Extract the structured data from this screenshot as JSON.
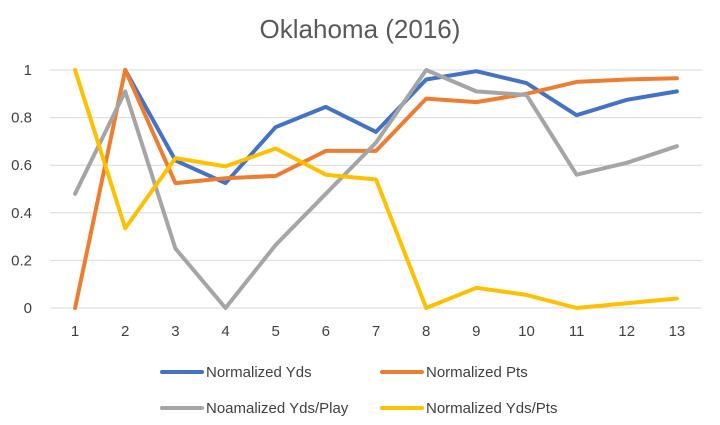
{
  "chart_data": {
    "type": "line",
    "title": "Oklahoma (2016)",
    "xlabel": "",
    "ylabel": "",
    "categories": [
      "1",
      "2",
      "3",
      "4",
      "5",
      "6",
      "7",
      "8",
      "9",
      "10",
      "11",
      "12",
      "13"
    ],
    "ylim": [
      0,
      1
    ],
    "yticks": [
      "0",
      "0.2",
      "0.4",
      "0.6",
      "0.8",
      "1"
    ],
    "grid": true,
    "legend_position": "bottom",
    "series": [
      {
        "name": "Normalized Yds",
        "color": "#4472C4",
        "values": [
          null,
          1.0,
          0.62,
          0.525,
          0.76,
          0.845,
          0.74,
          0.96,
          0.995,
          0.945,
          0.81,
          0.875,
          0.91
        ]
      },
      {
        "name": "Normalized Pts",
        "color": "#ED7D31",
        "values": [
          0.0,
          1.0,
          0.525,
          0.545,
          0.555,
          0.66,
          0.66,
          0.88,
          0.865,
          0.9,
          0.95,
          0.96,
          0.965
        ]
      },
      {
        "name": "Noamalized Yds/Play",
        "color": "#A5A5A5",
        "values": [
          0.48,
          0.91,
          0.25,
          0.0,
          0.265,
          0.48,
          0.695,
          1.0,
          0.91,
          0.895,
          0.56,
          0.61,
          0.68
        ]
      },
      {
        "name": "Normalized Yds/Pts",
        "color": "#FFC000",
        "values": [
          1.0,
          0.335,
          0.63,
          0.595,
          0.67,
          0.56,
          0.54,
          0.0,
          0.085,
          0.055,
          0.0,
          0.02,
          0.04
        ]
      }
    ]
  }
}
